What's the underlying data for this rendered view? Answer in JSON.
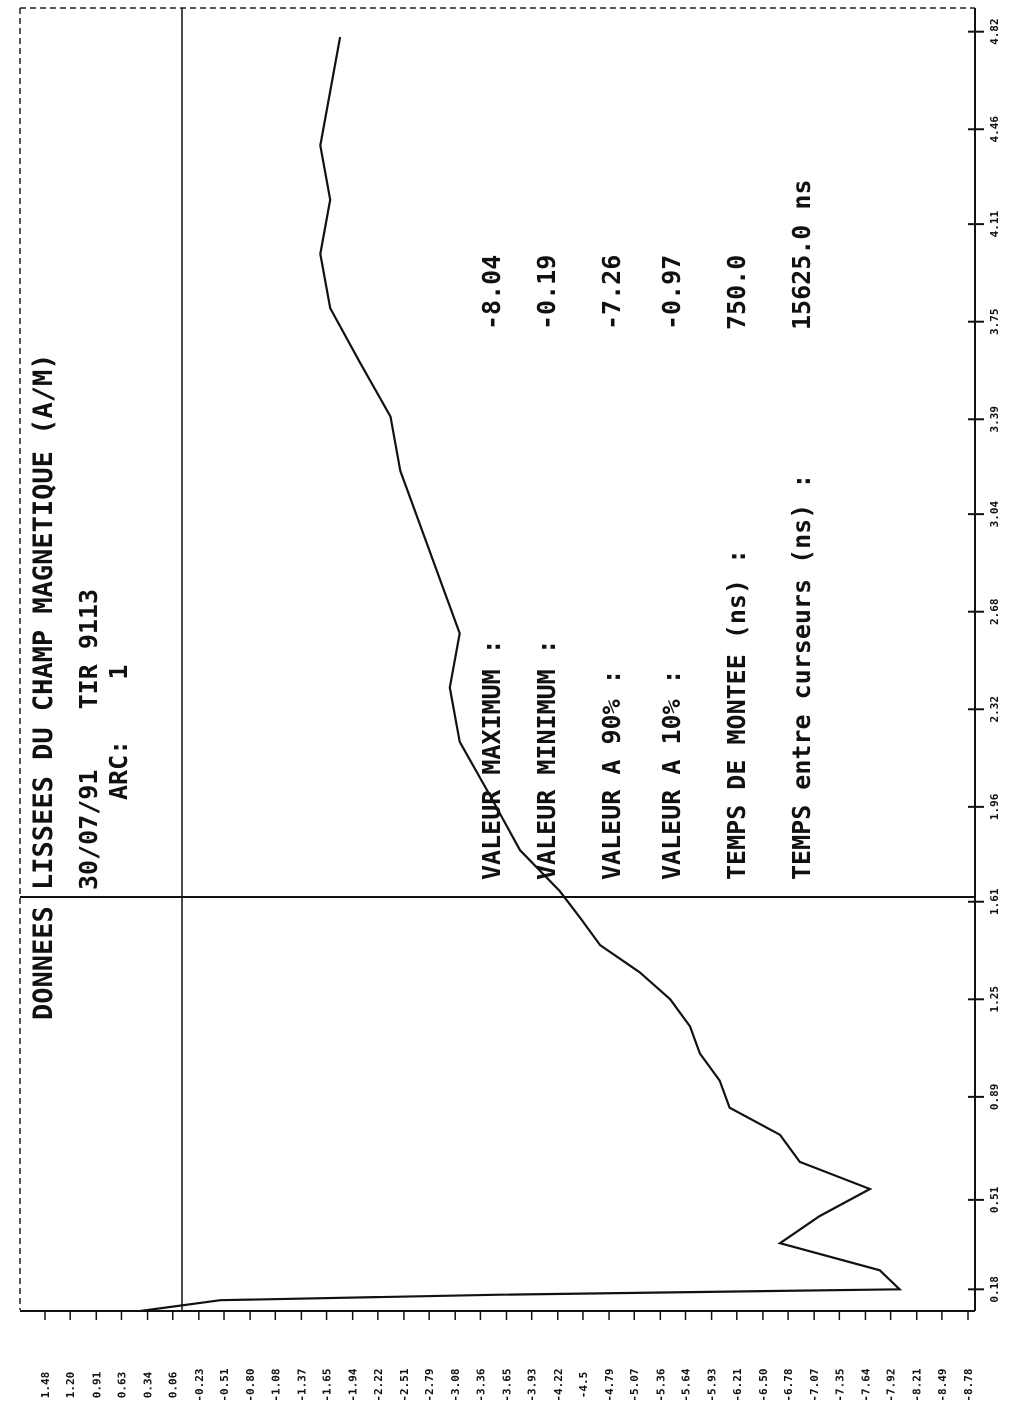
{
  "chart_data": {
    "type": "line",
    "title": "DONNEES LISSEES DU CHAMP MAGNETIQUE (A/M)",
    "date_shot": "30/07/91    TIR 9113",
    "arc": "ARC:    1",
    "readouts": [
      {
        "label": "VALEUR MAXIMUM :",
        "value": "-8.04"
      },
      {
        "label": "VALEUR MINIMUM :",
        "value": "-0.19"
      },
      {
        "label": "VALEUR A 90% :",
        "value": "-7.26"
      },
      {
        "label": "VALEUR A 10% :",
        "value": "-0.97"
      },
      {
        "label": "TEMPS DE MONTEE (ns)   :",
        "value": "750.0"
      },
      {
        "label": "TEMPS entre curseurs (ns) :",
        "value": "15625.0 ns"
      }
    ],
    "x": [
      0.1,
      0.14,
      0.16,
      0.17,
      0.18,
      0.25,
      0.35,
      0.45,
      0.55,
      0.65,
      0.75,
      0.85,
      0.95,
      1.05,
      1.15,
      1.25,
      1.35,
      1.45,
      1.55,
      1.65,
      1.8,
      2.0,
      2.2,
      2.4,
      2.6,
      2.8,
      3.0,
      3.2,
      3.4,
      3.6,
      3.8,
      4.0,
      4.2,
      4.4,
      4.6,
      4.8
    ],
    "series": [
      {
        "name": "champ",
        "color": "#111111",
        "values": [
          0.42,
          -0.47,
          -3.58,
          -5.8,
          -8.02,
          -7.8,
          -6.69,
          -7.13,
          -7.69,
          -6.91,
          -6.69,
          -6.13,
          -6.02,
          -5.8,
          -5.69,
          -5.47,
          -5.13,
          -4.69,
          -4.47,
          -4.24,
          -3.8,
          -3.47,
          -3.13,
          -3.02,
          -3.13,
          -2.91,
          -2.69,
          -2.47,
          -2.36,
          -2.02,
          -1.69,
          -1.58,
          -1.69,
          -1.58,
          -1.69,
          -1.8
        ]
      }
    ],
    "xlim": [
      0.1,
      4.9
    ],
    "xticks": [
      0.18,
      0.51,
      0.89,
      1.25,
      1.61,
      1.96,
      2.32,
      2.68,
      3.04,
      3.39,
      3.75,
      4.11,
      4.46,
      4.82
    ],
    "ylim": [
      1.48,
      -8.78
    ],
    "yticks": [
      1.48,
      {
        "value": 1.2,
        "label": "1.20"
      },
      0.91,
      0.63,
      0.34,
      0.06,
      -0.23,
      -0.51,
      {
        "value": -0.8,
        "label": "-0.80"
      },
      -1.08,
      -1.37,
      -1.65,
      -1.94,
      -2.22,
      -2.51,
      -2.79,
      -3.08,
      -3.36,
      -3.65,
      -3.93,
      -4.22,
      -4.5,
      -4.79,
      -5.07,
      -5.36,
      -5.64,
      -5.93,
      -6.21,
      {
        "value": -6.5,
        "label": "-6.50"
      },
      -6.78,
      -7.07,
      -7.35,
      -7.64,
      -7.92,
      -8.21,
      -8.49,
      -8.78
    ]
  }
}
